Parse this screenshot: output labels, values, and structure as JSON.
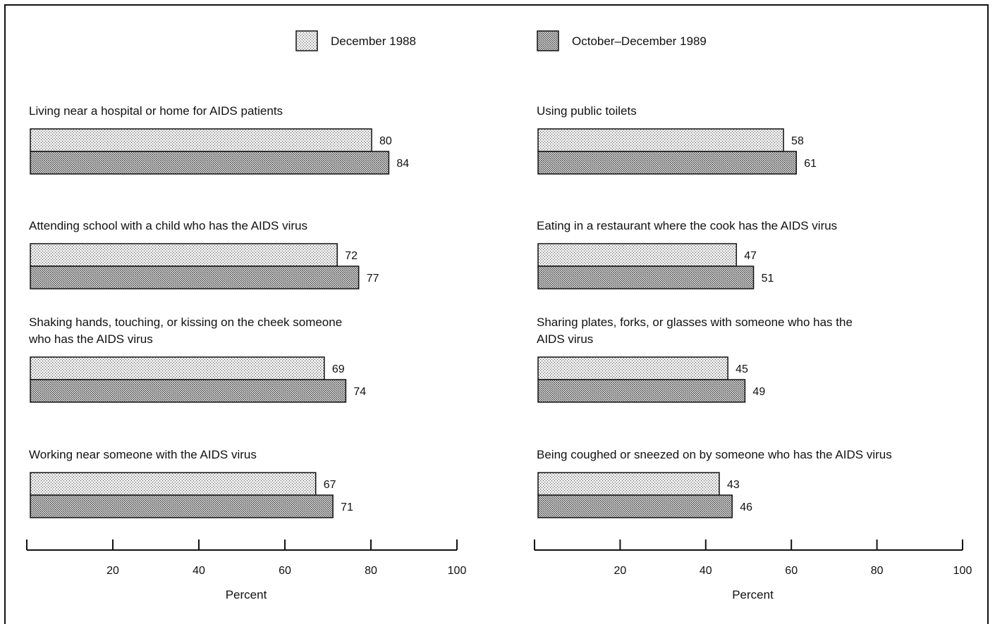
{
  "chart_data": {
    "type": "bar",
    "orientation": "horizontal",
    "legend": {
      "placement": "top",
      "items": [
        {
          "name": "December 1988",
          "pattern": "light-stipple"
        },
        {
          "name": "October–December 1989",
          "pattern": "dark-stipple"
        }
      ]
    },
    "series": [
      "December 1988",
      "October–December 1989"
    ],
    "panels": [
      {
        "xlabel": "Percent",
        "xlim": [
          0,
          100
        ],
        "xticks": [
          20,
          40,
          60,
          80,
          100
        ],
        "groups": [
          {
            "label": [
              "Living near a hospital or home for AIDS patients"
            ],
            "values": [
              80,
              84
            ]
          },
          {
            "label": [
              "Attending school with a child who has the AIDS virus"
            ],
            "values": [
              72,
              77
            ]
          },
          {
            "label": [
              "Shaking hands, touching, or kissing on the cheek someone",
              "who has the AIDS virus"
            ],
            "values": [
              69,
              74
            ]
          },
          {
            "label": [
              "Working near someone with the AIDS virus"
            ],
            "values": [
              67,
              71
            ]
          }
        ]
      },
      {
        "xlabel": "Percent",
        "xlim": [
          0,
          100
        ],
        "xticks": [
          20,
          40,
          60,
          80,
          100
        ],
        "groups": [
          {
            "label": [
              "Using public toilets"
            ],
            "values": [
              58,
              61
            ]
          },
          {
            "label": [
              "Eating in a restaurant where the cook has the AIDS virus"
            ],
            "values": [
              47,
              51
            ]
          },
          {
            "label": [
              "Sharing plates, forks, or glasses with someone who has the",
              "AIDS virus"
            ],
            "values": [
              45,
              49
            ]
          },
          {
            "label": [
              "Being coughed or sneezed on by someone who has the AIDS virus"
            ],
            "values": [
              43,
              46
            ]
          }
        ]
      }
    ]
  }
}
